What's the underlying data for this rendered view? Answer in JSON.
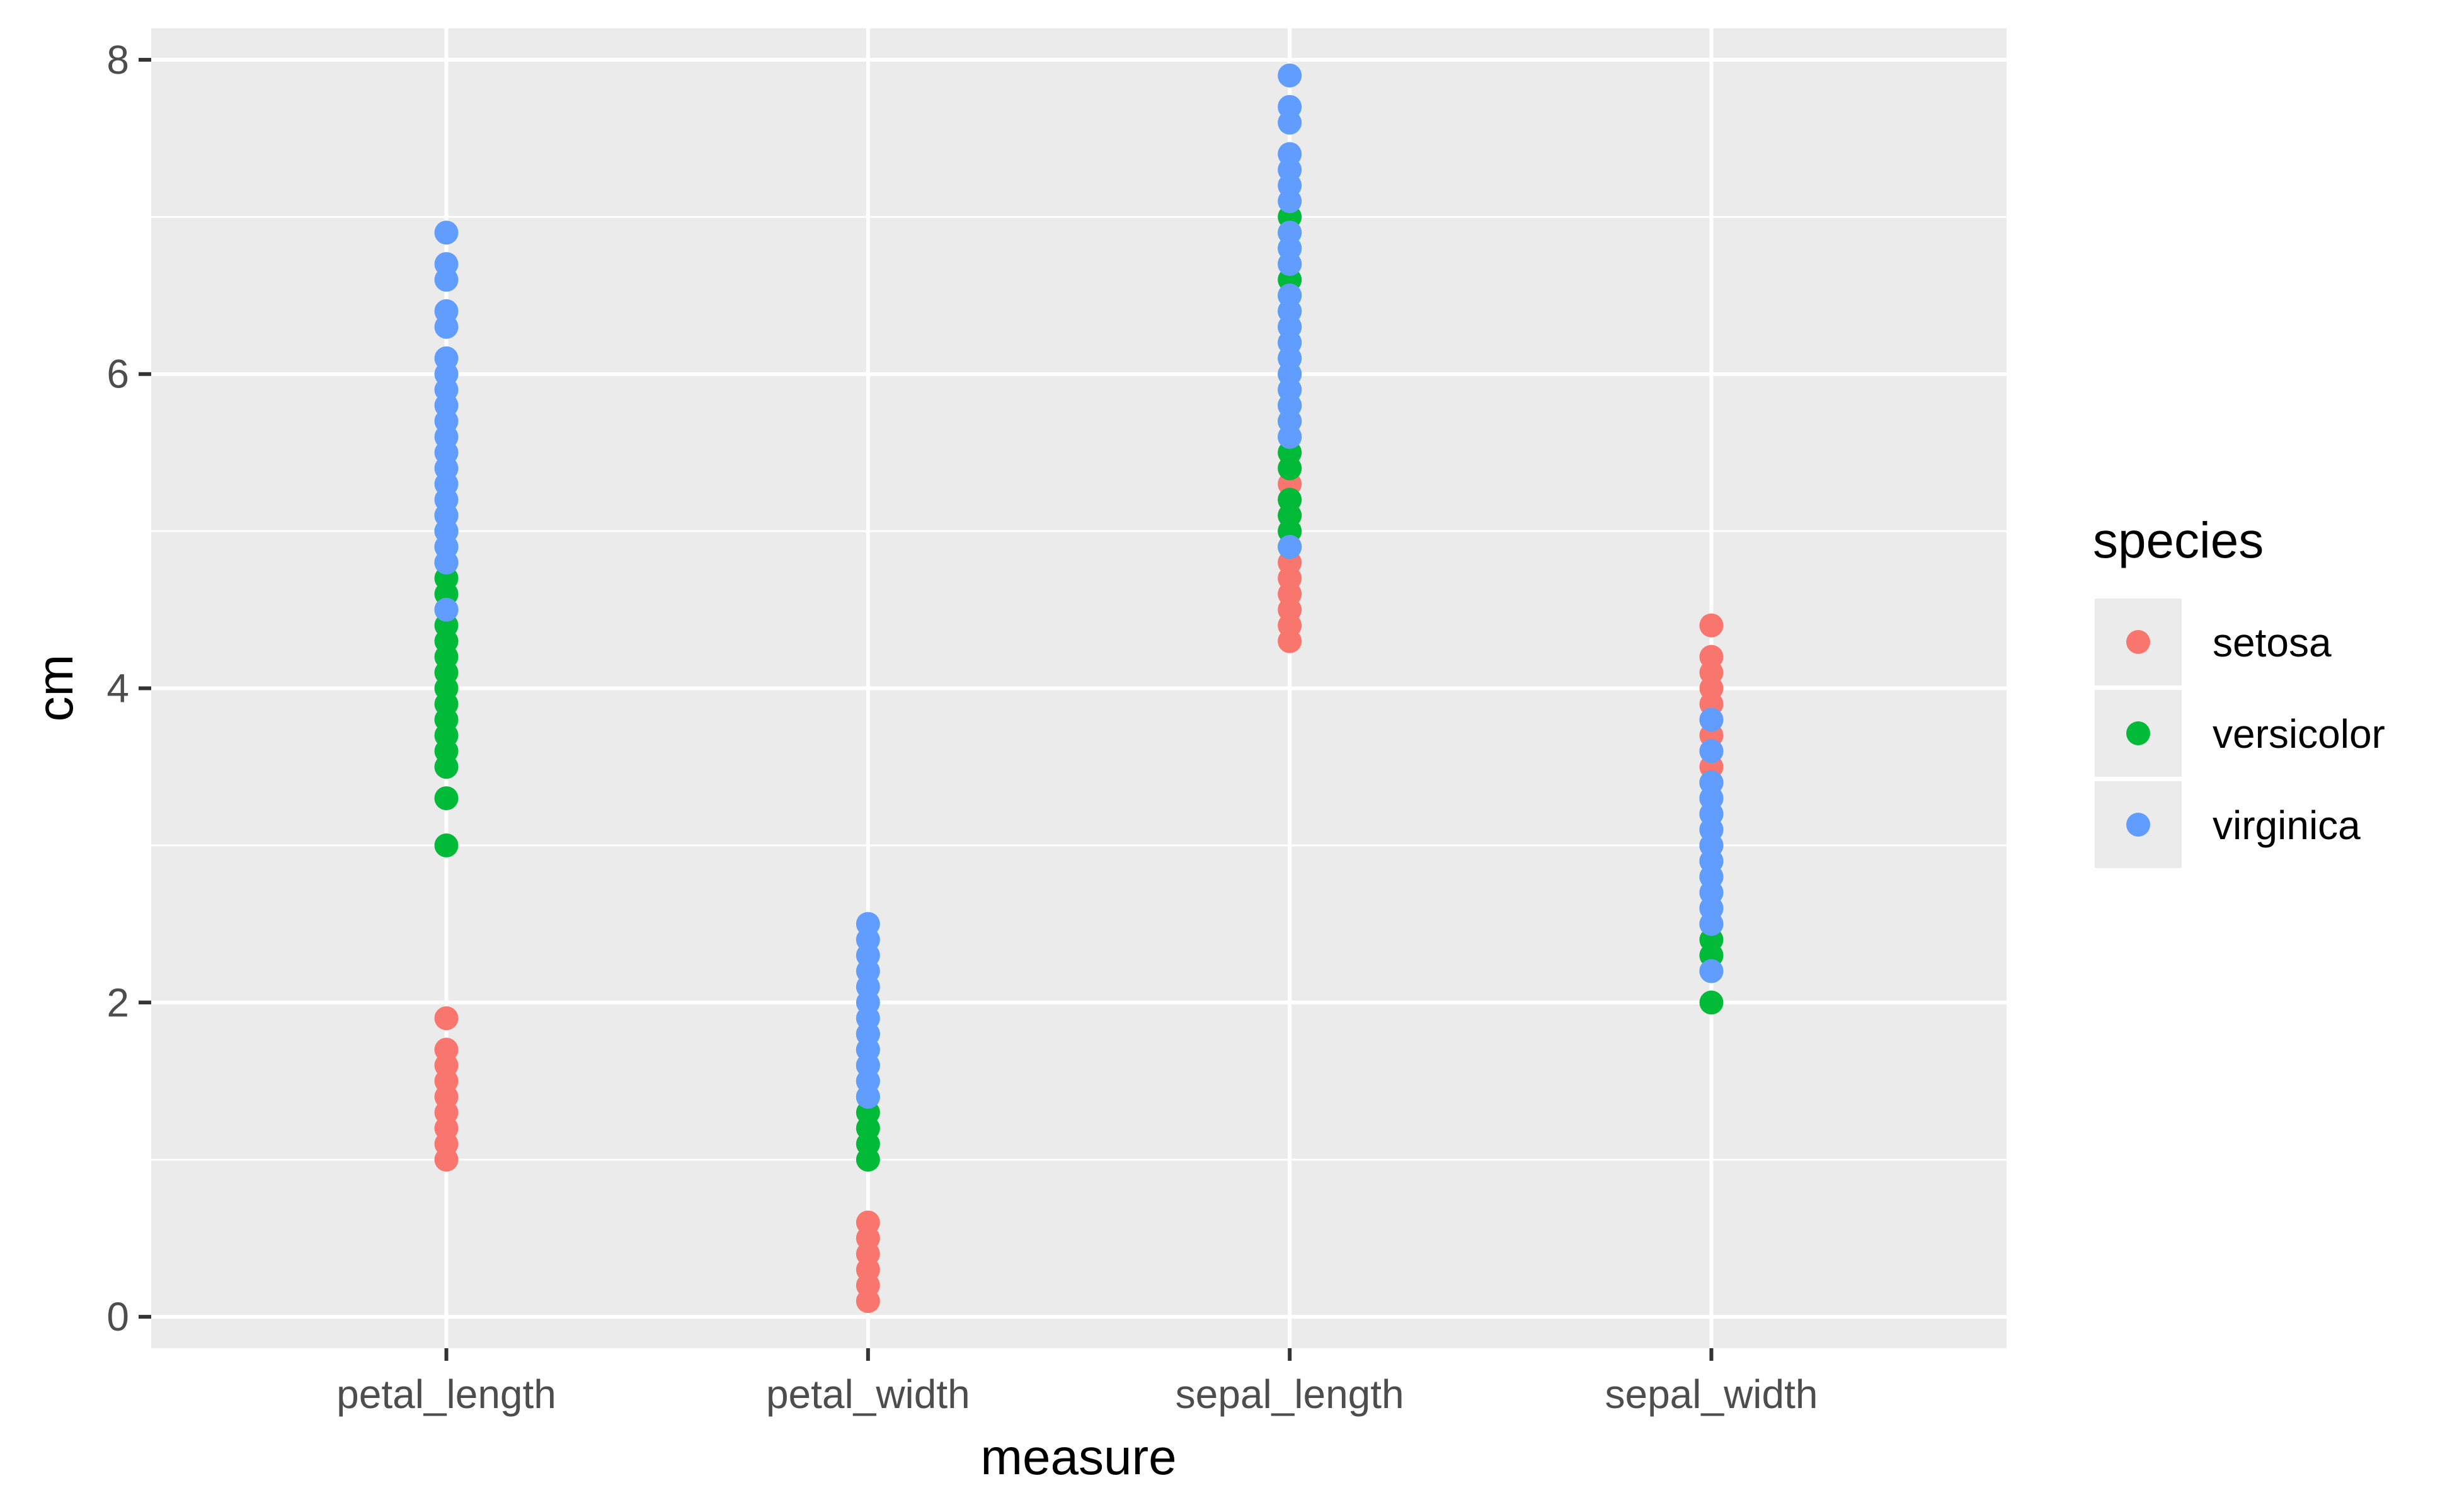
{
  "chart_data": {
    "type": "scatter",
    "xlabel": "measure",
    "ylabel": "cm",
    "categories": [
      "petal_length",
      "petal_width",
      "sepal_length",
      "sepal_width"
    ],
    "ylim": [
      -0.2,
      8.2
    ],
    "yticks": [
      0,
      2,
      4,
      6,
      8
    ],
    "grid": true,
    "legend": {
      "title": "species",
      "position": "right"
    },
    "series": [
      {
        "name": "setosa",
        "color": "#F8766D",
        "points": {
          "petal_length": [
            1.0,
            1.1,
            1.2,
            1.3,
            1.4,
            1.5,
            1.6,
            1.7,
            1.9
          ],
          "petal_width": [
            0.1,
            0.2,
            0.3,
            0.4,
            0.5,
            0.6
          ],
          "sepal_length": [
            4.3,
            4.4,
            4.5,
            4.6,
            4.7,
            4.8,
            4.9,
            5.0,
            5.1,
            5.2,
            5.3,
            5.4,
            5.5,
            5.7,
            5.8
          ],
          "sepal_width": [
            2.3,
            2.9,
            3.0,
            3.1,
            3.2,
            3.3,
            3.4,
            3.5,
            3.6,
            3.7,
            3.8,
            3.9,
            4.0,
            4.1,
            4.2,
            4.4
          ]
        }
      },
      {
        "name": "versicolor",
        "color": "#00BA38",
        "points": {
          "petal_length": [
            3.0,
            3.3,
            3.5,
            3.6,
            3.7,
            3.8,
            3.9,
            4.0,
            4.1,
            4.2,
            4.3,
            4.4,
            4.5,
            4.6,
            4.7,
            4.8,
            4.9,
            5.0,
            5.1
          ],
          "petal_width": [
            1.0,
            1.1,
            1.2,
            1.3,
            1.4,
            1.5,
            1.6,
            1.7,
            1.8
          ],
          "sepal_length": [
            4.9,
            5.0,
            5.1,
            5.2,
            5.4,
            5.5,
            5.6,
            5.7,
            5.8,
            5.9,
            6.0,
            6.1,
            6.2,
            6.3,
            6.4,
            6.5,
            6.6,
            6.7,
            6.8,
            6.9,
            7.0
          ],
          "sepal_width": [
            2.0,
            2.2,
            2.3,
            2.4,
            2.5,
            2.6,
            2.7,
            2.8,
            2.9,
            3.0,
            3.1,
            3.2,
            3.3,
            3.4
          ]
        }
      },
      {
        "name": "virginica",
        "color": "#619CFF",
        "points": {
          "petal_length": [
            4.5,
            4.8,
            4.9,
            5.0,
            5.1,
            5.2,
            5.3,
            5.4,
            5.5,
            5.6,
            5.7,
            5.8,
            5.9,
            6.0,
            6.1,
            6.3,
            6.4,
            6.6,
            6.7,
            6.9
          ],
          "petal_width": [
            1.4,
            1.5,
            1.6,
            1.7,
            1.8,
            1.9,
            2.0,
            2.1,
            2.2,
            2.3,
            2.4,
            2.5
          ],
          "sepal_length": [
            4.9,
            5.6,
            5.7,
            5.8,
            5.9,
            6.0,
            6.1,
            6.2,
            6.3,
            6.4,
            6.5,
            6.7,
            6.8,
            6.9,
            7.1,
            7.2,
            7.3,
            7.4,
            7.6,
            7.7,
            7.9
          ],
          "sepal_width": [
            2.2,
            2.5,
            2.6,
            2.7,
            2.8,
            2.9,
            3.0,
            3.1,
            3.2,
            3.3,
            3.4,
            3.6,
            3.8
          ]
        }
      }
    ]
  }
}
